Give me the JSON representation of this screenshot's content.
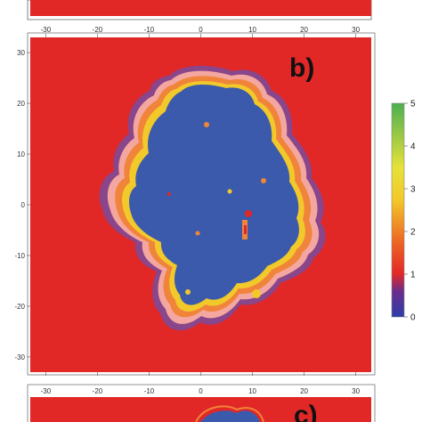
{
  "chart_data": {
    "type": "heatmap",
    "panel_labels": {
      "main": "b)",
      "bottom": "c)"
    },
    "x_ticks": [
      "-30",
      "-20",
      "-10",
      "0",
      "10",
      "20",
      "30"
    ],
    "y_ticks": [
      "30",
      "20",
      "10",
      "0",
      "-10",
      "-20",
      "-30"
    ],
    "x_range": [
      -33,
      33
    ],
    "y_range": [
      -33,
      33
    ],
    "colorbar": {
      "ticks": [
        "5",
        "4",
        "3",
        "2",
        "1",
        "0"
      ],
      "range": [
        0,
        5
      ],
      "stops": [
        "#2e3da8",
        "#6a2d8e",
        "#e22727",
        "#ee6a23",
        "#f2c92b",
        "#e6e23a",
        "#4caf50"
      ]
    },
    "colors": {
      "background": "#e22727",
      "core": "#3b5aac",
      "rim_orange": "#f0843a",
      "rim_yellow": "#f2c92b",
      "rim_pink": "#f4a7a0",
      "rim_purple": "#7a4c9c"
    }
  }
}
